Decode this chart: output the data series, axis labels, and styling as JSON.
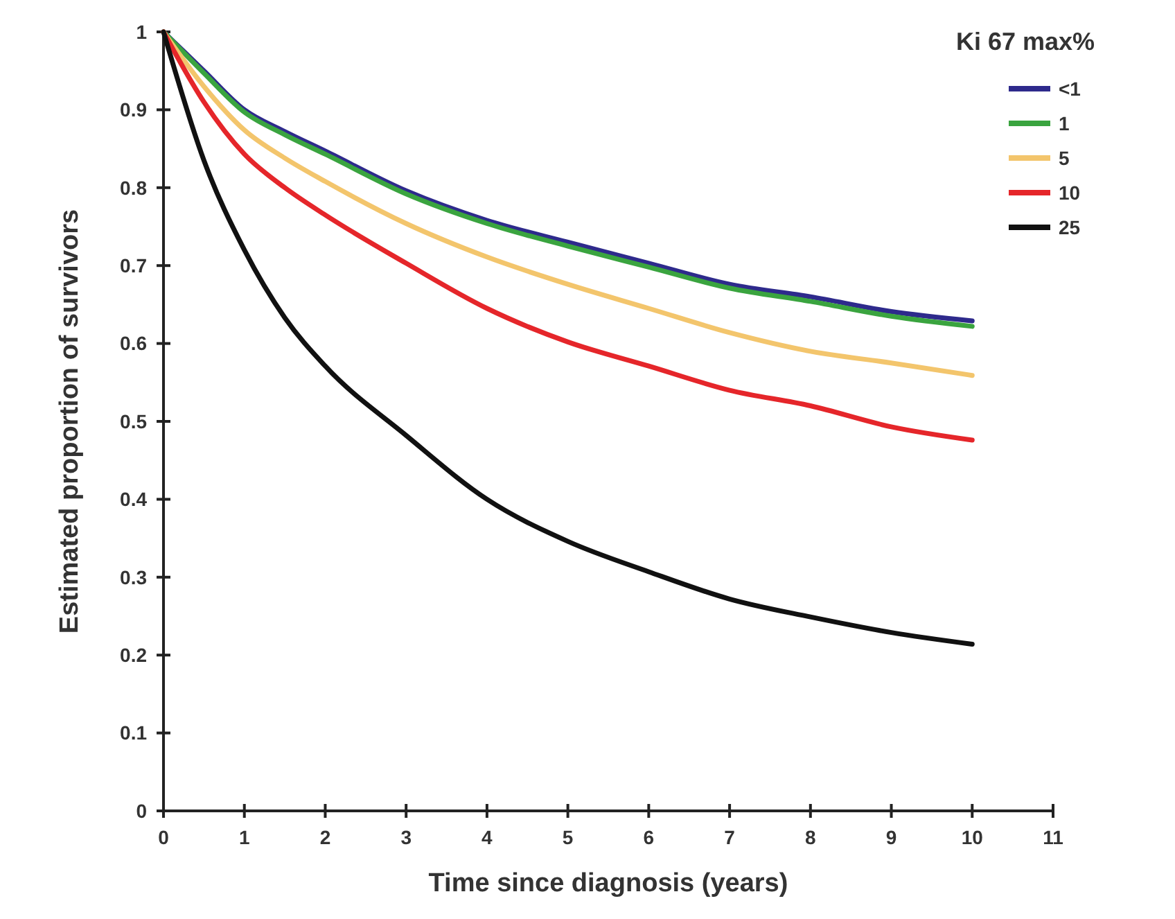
{
  "chart_data": {
    "type": "line",
    "xlabel": "Time since diagnosis (years)",
    "ylabel": "Estimated proportion of survivors",
    "legend_title": "Ki 67 max%",
    "x": [
      0,
      0.5,
      1,
      1.5,
      2,
      3,
      4,
      5,
      6,
      7,
      8,
      9,
      10
    ],
    "series": [
      {
        "name": "<1",
        "color": "#2e2a8c",
        "values": [
          1,
          0.95,
          0.9,
          0.872,
          0.847,
          0.796,
          0.758,
          0.73,
          0.703,
          0.676,
          0.66,
          0.641,
          0.629
        ]
      },
      {
        "name": "1",
        "color": "#3aa43f",
        "values": [
          1,
          0.947,
          0.897,
          0.868,
          0.843,
          0.792,
          0.754,
          0.725,
          0.698,
          0.671,
          0.654,
          0.635,
          0.622
        ]
      },
      {
        "name": "5",
        "color": "#f3c56c",
        "values": [
          1,
          0.93,
          0.874,
          0.838,
          0.808,
          0.754,
          0.711,
          0.676,
          0.645,
          0.614,
          0.59,
          0.575,
          0.559
        ]
      },
      {
        "name": "10",
        "color": "#e5262a",
        "values": [
          1,
          0.91,
          0.843,
          0.8,
          0.765,
          0.703,
          0.645,
          0.602,
          0.571,
          0.54,
          0.52,
          0.493,
          0.476
        ]
      },
      {
        "name": "25",
        "color": "#111111",
        "values": [
          1,
          0.835,
          0.72,
          0.633,
          0.571,
          0.482,
          0.4,
          0.346,
          0.307,
          0.272,
          0.249,
          0.229,
          0.214
        ]
      }
    ],
    "xlim": [
      0,
      11
    ],
    "xticks": [
      0,
      1,
      2,
      3,
      4,
      5,
      6,
      7,
      8,
      9,
      10,
      11
    ],
    "ylim": [
      0,
      1
    ],
    "yticks": [
      0,
      0.1,
      0.2,
      0.3,
      0.4,
      0.5,
      0.6,
      0.7,
      0.8,
      0.9,
      1
    ],
    "legend": "top right",
    "grid": false,
    "line_style": "solid"
  }
}
